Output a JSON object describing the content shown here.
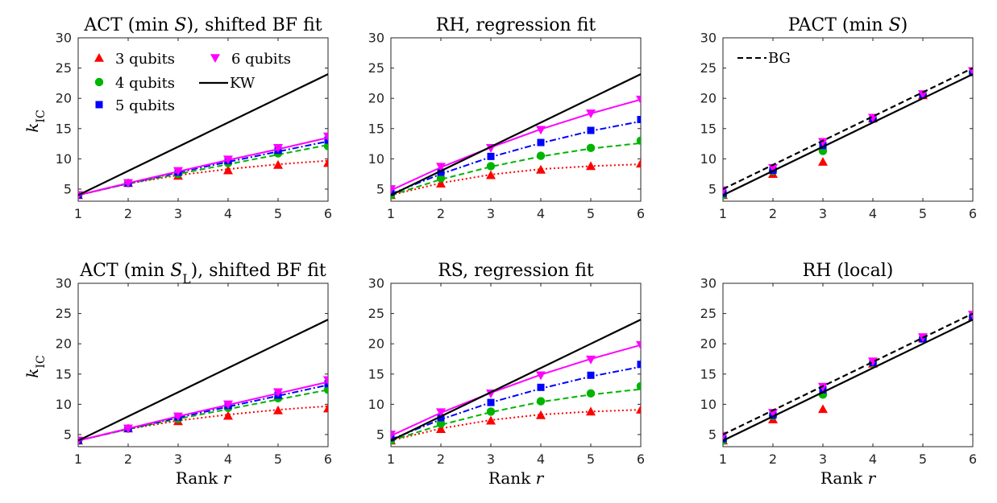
{
  "chart_data": [
    {
      "type": "line",
      "title": "ACT (min S), shifted BF fit",
      "ylabel": "k_IC",
      "xlabel": "",
      "x": [
        1,
        2,
        3,
        4,
        5,
        6
      ],
      "xlim": [
        1,
        6
      ],
      "ylim": [
        3,
        30
      ],
      "yticks": [
        5,
        10,
        15,
        20,
        25,
        30
      ],
      "xticks": [
        1,
        2,
        3,
        4,
        5,
        6
      ],
      "legend": {
        "placement": "top-left",
        "columns": 2,
        "entries": [
          "3 qubits",
          "4 qubits",
          "5 qubits",
          "6 qubits",
          "KW"
        ]
      },
      "series": [
        {
          "name": "3 qubits",
          "color": "#ff0000",
          "marker": "triangle-up",
          "line": "dotted",
          "values": [
            4,
            6,
            7.2,
            8.1,
            9,
            9.3
          ],
          "fit": [
            4,
            5.9,
            7.3,
            8.3,
            9.1,
            9.7
          ]
        },
        {
          "name": "4 qubits",
          "color": "#00b400",
          "marker": "circle",
          "line": "dashed",
          "values": [
            4,
            6,
            7.5,
            9.3,
            10.9,
            12.1
          ],
          "fit": [
            4,
            5.9,
            7.5,
            9.1,
            10.7,
            12.3
          ]
        },
        {
          "name": "5 qubits",
          "color": "#0000ff",
          "marker": "square",
          "line": "dashdot",
          "values": [
            4,
            6,
            7.8,
            9.7,
            11.4,
            13.1
          ],
          "fit": [
            4,
            5.95,
            7.75,
            9.5,
            11.2,
            12.9
          ]
        },
        {
          "name": "6 qubits",
          "color": "#ff00ff",
          "marker": "triangle-down",
          "line": "solid",
          "values": [
            4,
            6,
            8,
            9.9,
            11.8,
            13.7
          ],
          "fit": [
            4,
            6,
            7.9,
            9.8,
            11.6,
            13.5
          ]
        },
        {
          "name": "KW",
          "color": "#000000",
          "marker": "none",
          "line": "solid",
          "values": [
            4,
            8,
            12,
            16,
            20,
            24
          ]
        }
      ]
    },
    {
      "type": "line",
      "title": "RH, regression fit",
      "ylabel": "",
      "xlabel": "",
      "x": [
        1,
        2,
        3,
        4,
        5,
        6
      ],
      "xlim": [
        1,
        6
      ],
      "ylim": [
        3,
        30
      ],
      "yticks": [
        5,
        10,
        15,
        20,
        25,
        30
      ],
      "xticks": [
        1,
        2,
        3,
        4,
        5,
        6
      ],
      "series": [
        {
          "name": "3 qubits",
          "color": "#ff0000",
          "marker": "triangle-up",
          "line": "dotted",
          "values": [
            4,
            5.9,
            7.3,
            8.2,
            8.8,
            9.2
          ],
          "fit": [
            4,
            6,
            7.4,
            8.3,
            8.8,
            9.1
          ]
        },
        {
          "name": "4 qubits",
          "color": "#00b400",
          "marker": "circle",
          "line": "dashed",
          "values": [
            4,
            6.8,
            8.8,
            10.5,
            11.8,
            13
          ],
          "fit": [
            4,
            6.6,
            8.7,
            10.4,
            11.7,
            12.6
          ]
        },
        {
          "name": "5 qubits",
          "color": "#0000ff",
          "marker": "square",
          "line": "dashdot",
          "values": [
            4.5,
            7.8,
            10.4,
            12.7,
            14.7,
            16.5
          ],
          "fit": [
            4.2,
            7.5,
            10.3,
            12.6,
            14.6,
            16.2
          ]
        },
        {
          "name": "6 qubits",
          "color": "#ff00ff",
          "marker": "triangle-down",
          "line": "solid",
          "values": [
            5,
            8.7,
            11.8,
            14.8,
            17.5,
            19.8
          ],
          "fit": [
            4.8,
            8.6,
            11.9,
            14.9,
            17.5,
            19.8
          ]
        },
        {
          "name": "KW",
          "color": "#000000",
          "marker": "none",
          "line": "solid",
          "values": [
            4,
            8,
            12,
            16,
            20,
            24
          ]
        }
      ]
    },
    {
      "type": "line",
      "title": "PACT (min S)",
      "ylabel": "",
      "xlabel": "",
      "x": [
        1,
        2,
        3,
        4,
        5,
        6
      ],
      "xlim": [
        1,
        6
      ],
      "ylim": [
        3,
        30
      ],
      "yticks": [
        5,
        10,
        15,
        20,
        25,
        30
      ],
      "xticks": [
        1,
        2,
        3,
        4,
        5,
        6
      ],
      "legend": {
        "placement": "top-left",
        "columns": 1,
        "entries": [
          "BG"
        ]
      },
      "series": [
        {
          "name": "3 qubits",
          "color": "#ff0000",
          "marker": "triangle-up",
          "line": "none",
          "values": [
            4,
            7.5,
            9.5,
            16.7,
            20.5,
            24.3
          ]
        },
        {
          "name": "4 qubits",
          "color": "#00b400",
          "marker": "circle",
          "line": "none",
          "values": [
            4,
            8,
            11.3,
            16.6,
            20.6,
            24.3
          ]
        },
        {
          "name": "5 qubits",
          "color": "#0000ff",
          "marker": "square",
          "line": "none",
          "values": [
            4.3,
            8.1,
            12.2,
            16.6,
            20.6,
            24.3
          ]
        },
        {
          "name": "6 qubits",
          "color": "#ff00ff",
          "marker": "triangle-down",
          "line": "none",
          "values": [
            4.8,
            8.5,
            12.8,
            16.8,
            20.7,
            24.5
          ]
        },
        {
          "name": "KW",
          "color": "#000000",
          "marker": "none",
          "line": "solid",
          "values": [
            4,
            8,
            12,
            16,
            20,
            24
          ]
        },
        {
          "name": "BG",
          "color": "#000000",
          "marker": "none",
          "line": "dashed",
          "values": [
            5,
            9,
            13,
            17,
            21,
            25
          ]
        }
      ]
    },
    {
      "type": "line",
      "title": "ACT (min S_L), shifted BF fit",
      "ylabel": "k_IC",
      "xlabel": "Rank r",
      "x": [
        1,
        2,
        3,
        4,
        5,
        6
      ],
      "xlim": [
        1,
        6
      ],
      "ylim": [
        3,
        30
      ],
      "yticks": [
        5,
        10,
        15,
        20,
        25,
        30
      ],
      "xticks": [
        1,
        2,
        3,
        4,
        5,
        6
      ],
      "series": [
        {
          "name": "3 qubits",
          "color": "#ff0000",
          "marker": "triangle-up",
          "line": "dotted",
          "values": [
            4,
            6,
            7.2,
            8.1,
            9,
            9.3
          ],
          "fit": [
            4,
            5.9,
            7.3,
            8.3,
            9.1,
            9.7
          ]
        },
        {
          "name": "4 qubits",
          "color": "#00b400",
          "marker": "circle",
          "line": "dashed",
          "values": [
            4,
            6,
            7.6,
            9.4,
            11,
            12.4
          ],
          "fit": [
            4,
            5.9,
            7.6,
            9.2,
            10.8,
            12.4
          ]
        },
        {
          "name": "5 qubits",
          "color": "#0000ff",
          "marker": "square",
          "line": "dashdot",
          "values": [
            4,
            6,
            7.9,
            9.8,
            11.5,
            13.4
          ],
          "fit": [
            4,
            5.95,
            7.8,
            9.6,
            11.4,
            13.2
          ]
        },
        {
          "name": "6 qubits",
          "color": "#ff00ff",
          "marker": "triangle-down",
          "line": "solid",
          "values": [
            4,
            6,
            8,
            10,
            12,
            14
          ],
          "fit": [
            4,
            6,
            8,
            9.9,
            11.8,
            13.7
          ]
        },
        {
          "name": "KW",
          "color": "#000000",
          "marker": "none",
          "line": "solid",
          "values": [
            4,
            8,
            12,
            16,
            20,
            24
          ]
        }
      ]
    },
    {
      "type": "line",
      "title": "RS, regression fit",
      "ylabel": "",
      "xlabel": "Rank r",
      "x": [
        1,
        2,
        3,
        4,
        5,
        6
      ],
      "xlim": [
        1,
        6
      ],
      "ylim": [
        3,
        30
      ],
      "yticks": [
        5,
        10,
        15,
        20,
        25,
        30
      ],
      "xticks": [
        1,
        2,
        3,
        4,
        5,
        6
      ],
      "series": [
        {
          "name": "3 qubits",
          "color": "#ff0000",
          "marker": "triangle-up",
          "line": "dotted",
          "values": [
            4,
            5.9,
            7.3,
            8.2,
            8.8,
            9.1
          ],
          "fit": [
            4,
            6,
            7.4,
            8.3,
            8.8,
            9.1
          ]
        },
        {
          "name": "4 qubits",
          "color": "#00b400",
          "marker": "circle",
          "line": "dashed",
          "values": [
            4,
            6.8,
            8.8,
            10.5,
            11.8,
            13
          ],
          "fit": [
            4,
            6.6,
            8.7,
            10.4,
            11.6,
            12.5
          ]
        },
        {
          "name": "5 qubits",
          "color": "#0000ff",
          "marker": "square",
          "line": "dashdot",
          "values": [
            4.5,
            7.8,
            10.3,
            12.8,
            14.8,
            16.6
          ],
          "fit": [
            4.2,
            7.5,
            10.3,
            12.6,
            14.6,
            16.2
          ]
        },
        {
          "name": "6 qubits",
          "color": "#ff00ff",
          "marker": "triangle-down",
          "line": "solid",
          "values": [
            5,
            8.7,
            11.8,
            14.8,
            17.4,
            19.8
          ],
          "fit": [
            4.8,
            8.6,
            11.9,
            14.9,
            17.5,
            19.8
          ]
        },
        {
          "name": "KW",
          "color": "#000000",
          "marker": "none",
          "line": "solid",
          "values": [
            4,
            8,
            12,
            16,
            20,
            24
          ]
        }
      ]
    },
    {
      "type": "line",
      "title": "RH (local)",
      "ylabel": "",
      "xlabel": "Rank r",
      "x": [
        1,
        2,
        3,
        4,
        5,
        6
      ],
      "xlim": [
        1,
        6
      ],
      "ylim": [
        3,
        30
      ],
      "yticks": [
        5,
        10,
        15,
        20,
        25,
        30
      ],
      "xticks": [
        1,
        2,
        3,
        4,
        5,
        6
      ],
      "series": [
        {
          "name": "3 qubits",
          "color": "#ff0000",
          "marker": "triangle-up",
          "line": "none",
          "values": [
            4,
            7.5,
            9.2,
            16.7,
            20.9,
            24.5
          ]
        },
        {
          "name": "4 qubits",
          "color": "#00b400",
          "marker": "circle",
          "line": "none",
          "values": [
            4,
            8.1,
            11.6,
            16.8,
            20.9,
            24.5
          ]
        },
        {
          "name": "5 qubits",
          "color": "#0000ff",
          "marker": "square",
          "line": "none",
          "values": [
            4.3,
            8.2,
            12.4,
            16.9,
            20.8,
            24.6
          ]
        },
        {
          "name": "6 qubits",
          "color": "#ff00ff",
          "marker": "triangle-down",
          "line": "none",
          "values": [
            4.8,
            8.6,
            12.9,
            17.1,
            21.1,
            24.8
          ]
        },
        {
          "name": "KW",
          "color": "#000000",
          "marker": "none",
          "line": "solid",
          "values": [
            4,
            8,
            12,
            16,
            20,
            24
          ]
        },
        {
          "name": "BG",
          "color": "#000000",
          "marker": "none",
          "line": "dashed",
          "values": [
            5,
            9,
            13,
            17,
            21,
            25
          ]
        }
      ]
    }
  ]
}
